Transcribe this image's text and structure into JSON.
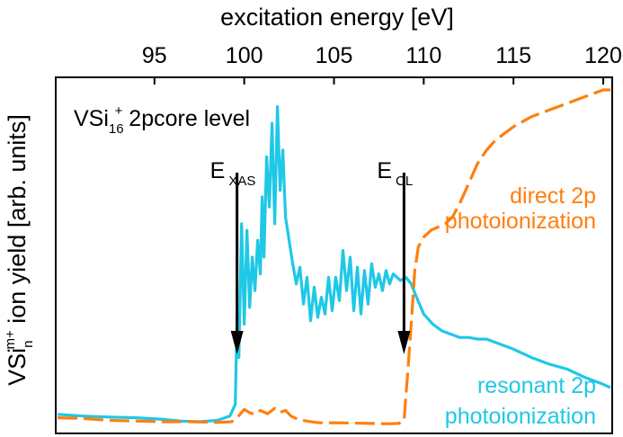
{
  "colors": {
    "orange": "#FF7F0E",
    "cyan": "#1EC8E6",
    "axis": "#000000"
  },
  "chart_data": {
    "type": "line",
    "xlabel": "excitation energy [eV]",
    "xlabel_position": "top",
    "ylabel": {
      "prefix": "VSi",
      "sub": "n",
      "sup": "m+",
      "rest": " ion yield [arb. units]"
    },
    "xlim": [
      89.5,
      120.5
    ],
    "ylim": [
      0,
      1
    ],
    "x_ticks": [
      95,
      100,
      105,
      110,
      115,
      120
    ],
    "x_tick_labels": [
      "95",
      "100",
      "105",
      "110",
      "115",
      "120"
    ],
    "grid": false,
    "title": {
      "main": "VSi",
      "sub": "16",
      "sup": "+",
      "rest": "  2pcore level"
    },
    "annotations": [
      {
        "label": "E",
        "sub": "XAS",
        "x": 99.6
      },
      {
        "label": "E",
        "sub": "CL",
        "x": 108.9
      }
    ],
    "series": [
      {
        "name": "resonant 2p photoionization",
        "label_lines": [
          "resonant 2p",
          "photoionization"
        ],
        "color": "#1EC8E6",
        "style": "solid",
        "points": [
          [
            89.6,
            0.03
          ],
          [
            91,
            0.025
          ],
          [
            92.5,
            0.022
          ],
          [
            94,
            0.02
          ],
          [
            95.5,
            0.015
          ],
          [
            96.5,
            0.01
          ],
          [
            97.5,
            0.008
          ],
          [
            98.5,
            0.012
          ],
          [
            99.2,
            0.025
          ],
          [
            99.5,
            0.06
          ],
          [
            99.6,
            0.32
          ],
          [
            99.7,
            0.2
          ],
          [
            99.85,
            0.6
          ],
          [
            100.0,
            0.3
          ],
          [
            100.15,
            0.58
          ],
          [
            100.3,
            0.35
          ],
          [
            100.45,
            0.5
          ],
          [
            100.6,
            0.4
          ],
          [
            100.75,
            0.55
          ],
          [
            100.9,
            0.45
          ],
          [
            101.0,
            0.68
          ],
          [
            101.1,
            0.5
          ],
          [
            101.25,
            0.8
          ],
          [
            101.4,
            0.65
          ],
          [
            101.55,
            0.9
          ],
          [
            101.7,
            0.6
          ],
          [
            101.85,
            0.95
          ],
          [
            102.0,
            0.7
          ],
          [
            102.15,
            0.82
          ],
          [
            102.3,
            0.62
          ],
          [
            102.5,
            0.55
          ],
          [
            102.7,
            0.48
          ],
          [
            102.9,
            0.42
          ],
          [
            103.1,
            0.47
          ],
          [
            103.3,
            0.36
          ],
          [
            103.5,
            0.44
          ],
          [
            103.7,
            0.31
          ],
          [
            103.9,
            0.41
          ],
          [
            104.1,
            0.32
          ],
          [
            104.3,
            0.38
          ],
          [
            104.5,
            0.33
          ],
          [
            104.7,
            0.44
          ],
          [
            104.9,
            0.34
          ],
          [
            105.1,
            0.44
          ],
          [
            105.3,
            0.37
          ],
          [
            105.5,
            0.52
          ],
          [
            105.7,
            0.4
          ],
          [
            105.9,
            0.5
          ],
          [
            106.1,
            0.34
          ],
          [
            106.3,
            0.47
          ],
          [
            106.5,
            0.33
          ],
          [
            106.7,
            0.46
          ],
          [
            106.9,
            0.36
          ],
          [
            107.1,
            0.48
          ],
          [
            107.3,
            0.41
          ],
          [
            107.5,
            0.45
          ],
          [
            107.7,
            0.4
          ],
          [
            107.9,
            0.46
          ],
          [
            108.1,
            0.42
          ],
          [
            108.3,
            0.45
          ],
          [
            108.5,
            0.44
          ],
          [
            108.7,
            0.43
          ],
          [
            109.0,
            0.44
          ],
          [
            109.3,
            0.42
          ],
          [
            109.6,
            0.38
          ],
          [
            110,
            0.33
          ],
          [
            110.5,
            0.3
          ],
          [
            111,
            0.28
          ],
          [
            111.5,
            0.27
          ],
          [
            112,
            0.26
          ],
          [
            112.5,
            0.26
          ],
          [
            113,
            0.255
          ],
          [
            113.5,
            0.255
          ],
          [
            114,
            0.245
          ],
          [
            115,
            0.225
          ],
          [
            116,
            0.2
          ],
          [
            117,
            0.18
          ],
          [
            118,
            0.165
          ],
          [
            119,
            0.14
          ],
          [
            120,
            0.12
          ],
          [
            120.4,
            0.11
          ]
        ]
      },
      {
        "name": "direct 2p photoionization",
        "label_lines": [
          "direct 2p",
          "photoionization"
        ],
        "color": "#FF7F0E",
        "style": "dashed",
        "points": [
          [
            89.6,
            0.02
          ],
          [
            91,
            0.018
          ],
          [
            92.5,
            0.012
          ],
          [
            94,
            0.01
          ],
          [
            95.5,
            0.008
          ],
          [
            97,
            0.008
          ],
          [
            98.5,
            0.006
          ],
          [
            99.3,
            0.008
          ],
          [
            99.6,
            0.02
          ],
          [
            100.0,
            0.045
          ],
          [
            100.3,
            0.035
          ],
          [
            100.6,
            0.03
          ],
          [
            100.9,
            0.042
          ],
          [
            101.3,
            0.032
          ],
          [
            101.7,
            0.048
          ],
          [
            102.0,
            0.036
          ],
          [
            102.3,
            0.042
          ],
          [
            102.6,
            0.025
          ],
          [
            103.0,
            0.015
          ],
          [
            103.5,
            0.01
          ],
          [
            104.0,
            0.006
          ],
          [
            104.5,
            0.004
          ],
          [
            105.0,
            0.005
          ],
          [
            106.0,
            0.004
          ],
          [
            107.0,
            0.003
          ],
          [
            108.0,
            0.002
          ],
          [
            108.6,
            0.003
          ],
          [
            108.9,
            0.01
          ],
          [
            109.1,
            0.15
          ],
          [
            109.3,
            0.3
          ],
          [
            109.5,
            0.46
          ],
          [
            109.7,
            0.53
          ],
          [
            110.0,
            0.56
          ],
          [
            110.4,
            0.58
          ],
          [
            110.8,
            0.59
          ],
          [
            111.2,
            0.6
          ],
          [
            111.6,
            0.62
          ],
          [
            112.0,
            0.66
          ],
          [
            112.5,
            0.72
          ],
          [
            113.0,
            0.78
          ],
          [
            113.5,
            0.82
          ],
          [
            114,
            0.85
          ],
          [
            115,
            0.89
          ],
          [
            116,
            0.92
          ],
          [
            117,
            0.94
          ],
          [
            118,
            0.96
          ],
          [
            119,
            0.98
          ],
          [
            120,
            1.0
          ],
          [
            120.4,
            1.0
          ]
        ]
      }
    ]
  }
}
